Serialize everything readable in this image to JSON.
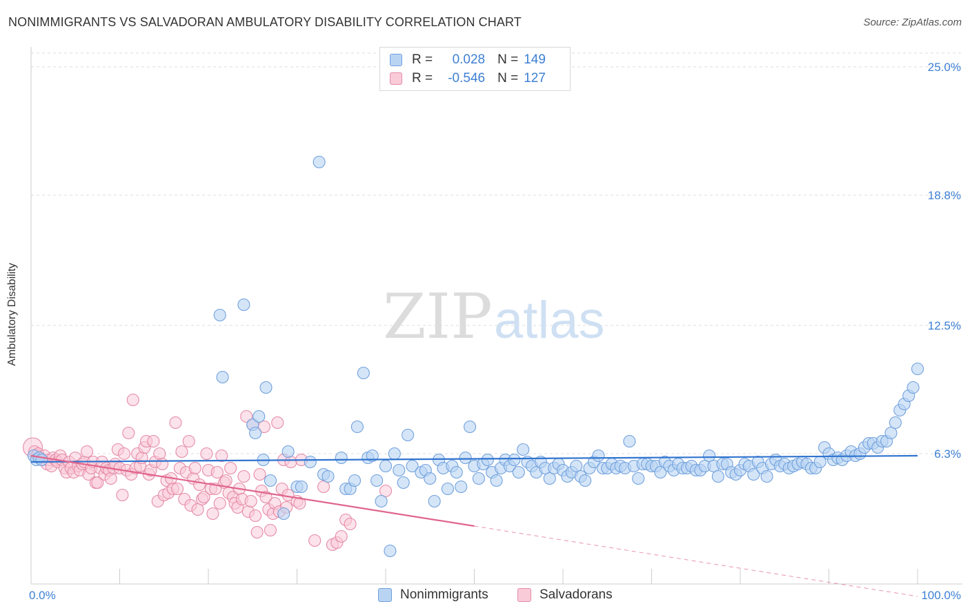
{
  "title": "NONIMMIGRANTS VS SALVADORAN AMBULATORY DISABILITY CORRELATION CHART",
  "source": "Source: ZipAtlas.com",
  "watermark": {
    "zip": "ZIP",
    "atlas": "atlas"
  },
  "legend": [
    {
      "r_label": "R =",
      "r_value": "0.028",
      "n_label": "N =",
      "n_value": "149",
      "color": "#9ec3f0",
      "border": "#6fa0dc"
    },
    {
      "r_label": "R =",
      "r_value": "-0.546",
      "n_label": "N =",
      "n_value": "127",
      "color": "#f7b9cc",
      "border": "#e58aa7"
    }
  ],
  "bottom_legend": [
    {
      "label": "Nonimmigrants",
      "color": "#b9d3f3",
      "border": "#6fa0dc"
    },
    {
      "label": "Salvadorans",
      "color": "#f9cbd8",
      "border": "#e58aa7"
    }
  ],
  "chart_data": {
    "type": "scatter",
    "title": "NONIMMIGRANTS VS SALVADORAN AMBULATORY DISABILITY CORRELATION CHART",
    "xlabel": "",
    "ylabel": "Ambulatory Disability",
    "xlim": [
      0,
      100
    ],
    "ylim": [
      0,
      25.0
    ],
    "x_tick_labels": [
      "0.0%",
      "100.0%"
    ],
    "y_ticks": [
      6.3,
      12.5,
      18.8,
      25.0
    ],
    "y_tick_labels": [
      "6.3%",
      "12.5%",
      "18.8%",
      "25.0%"
    ],
    "grid": "horizontal dashed",
    "legend_position": "top-center",
    "series": [
      {
        "name": "Nonimmigrants",
        "color": "#6fa0dc",
        "fill": "#b9d3f3",
        "trend": {
          "x": [
            0,
            100
          ],
          "y": [
            5.9,
            6.2
          ]
        },
        "points": [
          [
            0.3,
            6.2
          ],
          [
            0.6,
            6.0
          ],
          [
            0.9,
            6.1
          ],
          [
            1.2,
            6.0
          ],
          [
            21.3,
            13.0
          ],
          [
            21.6,
            10.0
          ],
          [
            24.0,
            13.5
          ],
          [
            25.0,
            7.7
          ],
          [
            25.3,
            7.3
          ],
          [
            25.7,
            8.1
          ],
          [
            26.2,
            6.0
          ],
          [
            26.5,
            9.5
          ],
          [
            27.0,
            5.0
          ],
          [
            28.5,
            3.4
          ],
          [
            29.0,
            6.4
          ],
          [
            30.0,
            4.7
          ],
          [
            30.5,
            4.7
          ],
          [
            31.5,
            5.9
          ],
          [
            32.5,
            20.4
          ],
          [
            33.0,
            5.3
          ],
          [
            33.5,
            5.2
          ],
          [
            35.0,
            6.1
          ],
          [
            35.5,
            4.6
          ],
          [
            36.0,
            4.6
          ],
          [
            36.5,
            5.0
          ],
          [
            36.8,
            7.6
          ],
          [
            37.5,
            10.2
          ],
          [
            38.0,
            6.1
          ],
          [
            38.5,
            6.2
          ],
          [
            39.0,
            5.0
          ],
          [
            39.5,
            4.0
          ],
          [
            40.0,
            5.7
          ],
          [
            40.5,
            1.6
          ],
          [
            41.0,
            6.3
          ],
          [
            41.5,
            5.5
          ],
          [
            42.0,
            4.9
          ],
          [
            42.5,
            7.2
          ],
          [
            43.0,
            5.7
          ],
          [
            44.0,
            5.4
          ],
          [
            44.5,
            5.5
          ],
          [
            45.0,
            5.1
          ],
          [
            45.5,
            4.0
          ],
          [
            46.0,
            6.0
          ],
          [
            46.5,
            5.6
          ],
          [
            47.0,
            4.6
          ],
          [
            47.5,
            5.7
          ],
          [
            48.0,
            5.4
          ],
          [
            48.5,
            4.7
          ],
          [
            49.0,
            6.1
          ],
          [
            49.5,
            7.6
          ],
          [
            50.0,
            5.7
          ],
          [
            50.5,
            5.1
          ],
          [
            51.0,
            5.8
          ],
          [
            51.5,
            6.0
          ],
          [
            52.0,
            5.4
          ],
          [
            52.5,
            5.0
          ],
          [
            53.0,
            5.6
          ],
          [
            53.5,
            6.0
          ],
          [
            54.0,
            5.7
          ],
          [
            54.5,
            6.0
          ],
          [
            55.0,
            5.4
          ],
          [
            55.5,
            6.5
          ],
          [
            56.0,
            5.9
          ],
          [
            56.5,
            5.7
          ],
          [
            57.0,
            5.4
          ],
          [
            57.5,
            5.9
          ],
          [
            58.0,
            5.6
          ],
          [
            58.5,
            5.1
          ],
          [
            59.0,
            5.6
          ],
          [
            59.5,
            5.8
          ],
          [
            60.0,
            5.5
          ],
          [
            60.5,
            5.2
          ],
          [
            61.0,
            5.4
          ],
          [
            61.5,
            5.7
          ],
          [
            62.0,
            5.2
          ],
          [
            62.5,
            5.0
          ],
          [
            63.0,
            5.6
          ],
          [
            63.5,
            5.9
          ],
          [
            64.0,
            6.2
          ],
          [
            64.5,
            5.6
          ],
          [
            65.0,
            5.6
          ],
          [
            65.5,
            5.8
          ],
          [
            66.0,
            5.6
          ],
          [
            66.5,
            5.7
          ],
          [
            67.0,
            5.6
          ],
          [
            67.5,
            6.9
          ],
          [
            68.0,
            5.7
          ],
          [
            68.5,
            5.1
          ],
          [
            69.0,
            5.8
          ],
          [
            69.5,
            5.8
          ],
          [
            70.0,
            5.7
          ],
          [
            70.5,
            5.7
          ],
          [
            71.0,
            5.4
          ],
          [
            71.5,
            5.9
          ],
          [
            72.0,
            5.7
          ],
          [
            72.5,
            5.5
          ],
          [
            73.0,
            5.8
          ],
          [
            73.5,
            5.6
          ],
          [
            74.0,
            5.6
          ],
          [
            74.5,
            5.7
          ],
          [
            75.0,
            5.5
          ],
          [
            75.5,
            5.5
          ],
          [
            76.0,
            5.7
          ],
          [
            76.5,
            6.2
          ],
          [
            77.0,
            5.7
          ],
          [
            77.5,
            5.2
          ],
          [
            78.0,
            5.8
          ],
          [
            78.5,
            5.8
          ],
          [
            79.0,
            5.4
          ],
          [
            79.5,
            5.3
          ],
          [
            80.0,
            5.5
          ],
          [
            80.5,
            5.8
          ],
          [
            81.0,
            5.7
          ],
          [
            81.5,
            5.3
          ],
          [
            82.0,
            5.9
          ],
          [
            82.5,
            5.6
          ],
          [
            83.0,
            5.2
          ],
          [
            83.5,
            5.8
          ],
          [
            84.0,
            6.0
          ],
          [
            84.5,
            5.7
          ],
          [
            85.0,
            5.8
          ],
          [
            85.5,
            5.6
          ],
          [
            86.0,
            5.7
          ],
          [
            86.5,
            5.8
          ],
          [
            87.0,
            5.9
          ],
          [
            87.5,
            5.8
          ],
          [
            88.0,
            5.6
          ],
          [
            88.5,
            5.6
          ],
          [
            89.0,
            5.9
          ],
          [
            89.5,
            6.6
          ],
          [
            90.0,
            6.3
          ],
          [
            90.5,
            6.0
          ],
          [
            91.0,
            6.1
          ],
          [
            91.5,
            6.0
          ],
          [
            92.0,
            6.2
          ],
          [
            92.5,
            6.4
          ],
          [
            93.0,
            6.2
          ],
          [
            93.5,
            6.3
          ],
          [
            94.0,
            6.6
          ],
          [
            94.5,
            6.8
          ],
          [
            95.0,
            6.8
          ],
          [
            95.5,
            6.6
          ],
          [
            96.0,
            6.9
          ],
          [
            96.5,
            6.9
          ],
          [
            97.0,
            7.3
          ],
          [
            97.5,
            7.8
          ],
          [
            98.0,
            8.4
          ],
          [
            98.5,
            8.7
          ],
          [
            99.0,
            9.1
          ],
          [
            99.5,
            9.5
          ],
          [
            100.0,
            10.4
          ]
        ]
      },
      {
        "name": "Salvadorans",
        "color": "#e58aa7",
        "fill": "#f9cbd8",
        "trend": {
          "x": [
            0,
            50
          ],
          "y": [
            6.2,
            2.8
          ]
        },
        "trend_dashed": {
          "x": [
            50,
            100
          ],
          "y": [
            2.8,
            -0.6
          ]
        },
        "points": [
          [
            0.2,
            6.6
          ],
          [
            0.4,
            6.4
          ],
          [
            0.6,
            6.2
          ],
          [
            0.8,
            6.3
          ],
          [
            1.0,
            6.1
          ],
          [
            1.2,
            6.0
          ],
          [
            1.5,
            6.2
          ],
          [
            1.8,
            5.8
          ],
          [
            2.0,
            6.0
          ],
          [
            2.3,
            5.7
          ],
          [
            2.5,
            6.1
          ],
          [
            2.8,
            6.0
          ],
          [
            3.0,
            5.9
          ],
          [
            3.3,
            6.2
          ],
          [
            3.5,
            6.0
          ],
          [
            3.8,
            5.6
          ],
          [
            4.0,
            5.4
          ],
          [
            4.3,
            5.9
          ],
          [
            4.5,
            5.6
          ],
          [
            4.8,
            5.4
          ],
          [
            5.0,
            6.1
          ],
          [
            5.3,
            5.7
          ],
          [
            5.5,
            5.5
          ],
          [
            5.8,
            5.8
          ],
          [
            6.0,
            5.9
          ],
          [
            6.3,
            6.4
          ],
          [
            6.5,
            5.3
          ],
          [
            6.8,
            5.6
          ],
          [
            7.0,
            5.9
          ],
          [
            7.3,
            4.9
          ],
          [
            7.5,
            4.9
          ],
          [
            7.8,
            5.6
          ],
          [
            8.0,
            5.9
          ],
          [
            8.3,
            5.3
          ],
          [
            8.5,
            5.6
          ],
          [
            8.8,
            5.5
          ],
          [
            9.0,
            5.1
          ],
          [
            9.3,
            5.6
          ],
          [
            9.5,
            5.8
          ],
          [
            9.8,
            6.5
          ],
          [
            10.0,
            5.6
          ],
          [
            10.3,
            4.3
          ],
          [
            10.5,
            6.3
          ],
          [
            10.8,
            5.5
          ],
          [
            11.0,
            7.3
          ],
          [
            11.3,
            5.3
          ],
          [
            11.5,
            8.9
          ],
          [
            11.8,
            5.6
          ],
          [
            12.0,
            6.3
          ],
          [
            12.3,
            5.7
          ],
          [
            12.5,
            6.1
          ],
          [
            12.8,
            6.6
          ],
          [
            13.0,
            6.9
          ],
          [
            13.3,
            5.3
          ],
          [
            13.5,
            5.5
          ],
          [
            13.8,
            6.9
          ],
          [
            14.0,
            5.9
          ],
          [
            14.3,
            4.0
          ],
          [
            14.5,
            6.3
          ],
          [
            14.8,
            5.8
          ],
          [
            15.0,
            4.3
          ],
          [
            15.3,
            5.0
          ],
          [
            15.5,
            4.4
          ],
          [
            15.8,
            5.1
          ],
          [
            16.0,
            4.6
          ],
          [
            16.3,
            7.8
          ],
          [
            16.5,
            4.6
          ],
          [
            16.8,
            5.6
          ],
          [
            17.0,
            6.4
          ],
          [
            17.3,
            4.1
          ],
          [
            17.5,
            5.4
          ],
          [
            17.8,
            6.9
          ],
          [
            18.0,
            3.8
          ],
          [
            18.3,
            5.1
          ],
          [
            18.5,
            5.6
          ],
          [
            18.8,
            3.6
          ],
          [
            19.0,
            4.8
          ],
          [
            19.3,
            4.1
          ],
          [
            19.5,
            4.2
          ],
          [
            19.8,
            6.3
          ],
          [
            20.0,
            5.5
          ],
          [
            20.3,
            4.6
          ],
          [
            20.5,
            3.4
          ],
          [
            20.8,
            4.6
          ],
          [
            21.0,
            5.4
          ],
          [
            21.3,
            3.9
          ],
          [
            21.5,
            6.2
          ],
          [
            21.8,
            4.9
          ],
          [
            22.0,
            5.0
          ],
          [
            22.3,
            4.4
          ],
          [
            22.5,
            5.6
          ],
          [
            22.8,
            4.2
          ],
          [
            23.0,
            3.9
          ],
          [
            23.3,
            3.7
          ],
          [
            23.5,
            4.6
          ],
          [
            23.8,
            4.1
          ],
          [
            24.0,
            5.2
          ],
          [
            24.3,
            8.1
          ],
          [
            24.5,
            3.5
          ],
          [
            24.8,
            4.0
          ],
          [
            25.0,
            7.7
          ],
          [
            25.3,
            3.3
          ],
          [
            25.5,
            2.5
          ],
          [
            25.8,
            5.3
          ],
          [
            26.0,
            4.5
          ],
          [
            26.3,
            7.6
          ],
          [
            26.5,
            4.2
          ],
          [
            26.8,
            3.6
          ],
          [
            27.0,
            2.6
          ],
          [
            27.3,
            3.4
          ],
          [
            27.5,
            3.9
          ],
          [
            27.8,
            7.8
          ],
          [
            28.0,
            3.5
          ],
          [
            28.3,
            4.6
          ],
          [
            28.5,
            6.0
          ],
          [
            28.8,
            3.7
          ],
          [
            29.0,
            4.3
          ],
          [
            29.3,
            5.9
          ],
          [
            30.0,
            4.0
          ],
          [
            30.3,
            3.9
          ],
          [
            30.5,
            6.0
          ],
          [
            32.0,
            2.1
          ],
          [
            33.0,
            4.7
          ],
          [
            34.0,
            1.9
          ],
          [
            34.5,
            2.0
          ],
          [
            35.0,
            2.3
          ],
          [
            35.5,
            3.1
          ],
          [
            36.0,
            2.9
          ],
          [
            40.0,
            4.5
          ]
        ]
      }
    ]
  }
}
